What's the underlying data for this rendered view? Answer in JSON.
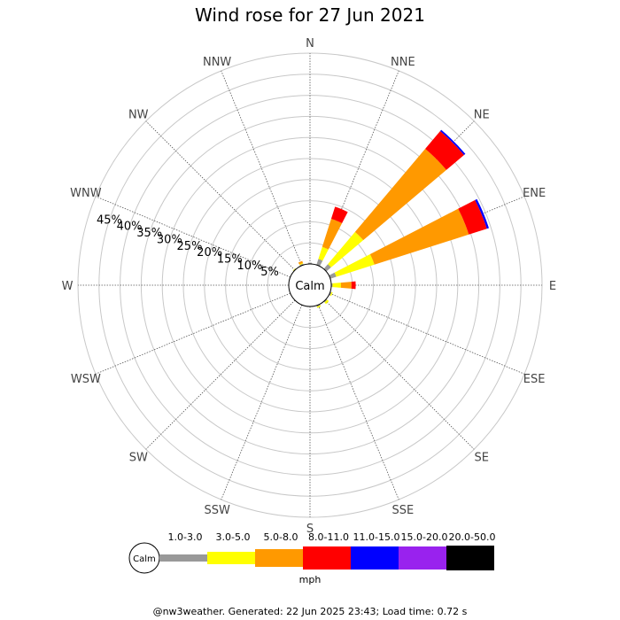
{
  "chart_data": {
    "type": "windrose",
    "title": "Wind rose for 27 Jun 2021",
    "directions": [
      "N",
      "NNE",
      "NE",
      "ENE",
      "E",
      "ESE",
      "SE",
      "SSE",
      "S",
      "SSW",
      "SW",
      "WSW",
      "W",
      "WNW",
      "NW",
      "NNW"
    ],
    "ring_labels": [
      "5%",
      "10%",
      "15%",
      "20%",
      "25%",
      "30%",
      "35%",
      "40%",
      "45%"
    ],
    "rmax_percent": 50,
    "calm_label": "Calm",
    "unit": "mph",
    "bins": [
      {
        "label": "1.0-3.0",
        "color": "#999999"
      },
      {
        "label": "3.0-5.0",
        "color": "#ffff00"
      },
      {
        "label": "5.0-8.0",
        "color": "#ff9900"
      },
      {
        "label": "8.0-11.0",
        "color": "#ff0000"
      },
      {
        "label": "11.0-15.0",
        "color": "#0000ff"
      },
      {
        "label": "15.0-20.0",
        "color": "#9922ee"
      },
      {
        "label": "20.0-50.0",
        "color": "#000000"
      }
    ],
    "series": [
      {
        "direction": "N",
        "values": [
          0.3,
          0.0,
          0.0,
          0,
          0,
          0,
          0
        ]
      },
      {
        "direction": "NNE",
        "values": [
          1.5,
          3.0,
          7.0,
          3.0,
          0,
          0,
          0
        ]
      },
      {
        "direction": "NE",
        "values": [
          1.5,
          10.0,
          25.8,
          5.5,
          0.4,
          0,
          0
        ]
      },
      {
        "direction": "ENE",
        "values": [
          1.5,
          9.5,
          23.5,
          4.5,
          0.5,
          0,
          0
        ]
      },
      {
        "direction": "E",
        "values": [
          0.3,
          2.0,
          2.5,
          1.0,
          0,
          0,
          0
        ]
      },
      {
        "direction": "ESE",
        "values": [
          0.3,
          0.3,
          0,
          0,
          0,
          0,
          0
        ]
      },
      {
        "direction": "SE",
        "values": [
          0.3,
          0.5,
          0,
          0,
          0,
          0,
          0
        ]
      },
      {
        "direction": "SSE",
        "values": [
          0.3,
          0.3,
          0,
          0,
          0,
          0,
          0
        ]
      },
      {
        "direction": "S",
        "values": [
          0,
          0,
          0,
          0,
          0,
          0,
          0
        ]
      },
      {
        "direction": "SSW",
        "values": [
          0,
          0,
          0,
          0,
          0,
          0,
          0
        ]
      },
      {
        "direction": "SW",
        "values": [
          0,
          0,
          0,
          0,
          0,
          0,
          0
        ]
      },
      {
        "direction": "WSW",
        "values": [
          0,
          0,
          0,
          0,
          0,
          0,
          0
        ]
      },
      {
        "direction": "W",
        "values": [
          0,
          0,
          0,
          0,
          0,
          0,
          0
        ]
      },
      {
        "direction": "WNW",
        "values": [
          0,
          0,
          0,
          0,
          0,
          0,
          0
        ]
      },
      {
        "direction": "NW",
        "values": [
          0.2,
          0.1,
          0,
          0,
          0,
          0,
          0
        ]
      },
      {
        "direction": "NNW",
        "values": [
          0.3,
          0.2,
          0.5,
          0,
          0,
          0,
          0
        ]
      }
    ]
  },
  "footer": "@nw3weather. Generated: 22 Jun 2025 23:43; Load time: 0.72 s"
}
